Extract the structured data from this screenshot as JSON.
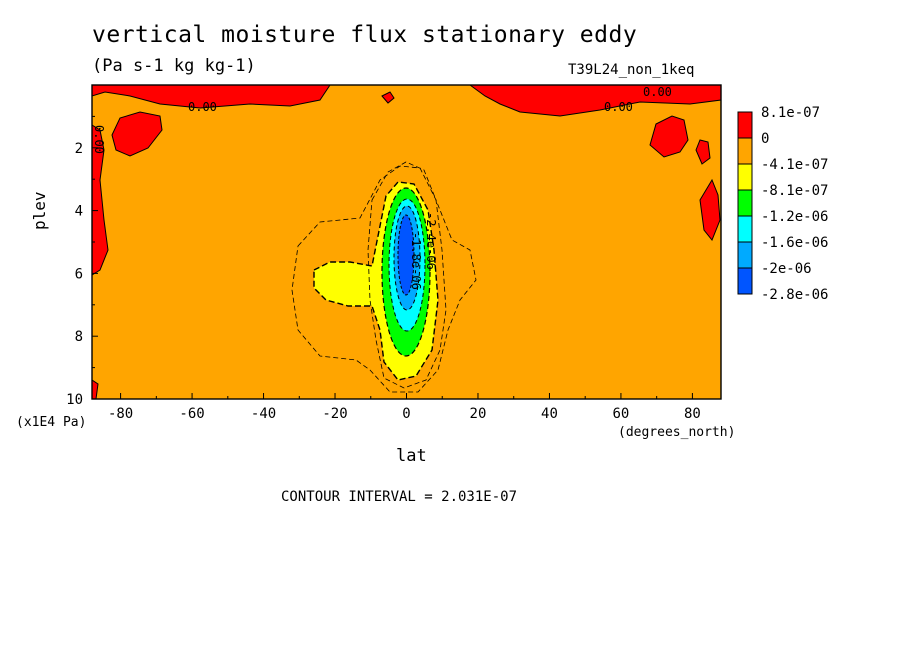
{
  "chart_data": {
    "type": "heatmap",
    "title": "vertical moisture flux stationary eddy",
    "units": "(Pa s-1 kg kg-1)",
    "run_label": "T39L24_non_1keq",
    "xlabel": "lat",
    "x_unit": "(degrees_north)",
    "ylabel": "plev",
    "y_unit": "(x1E4 Pa)",
    "xlim": [
      -88,
      88
    ],
    "ylim": [
      10,
      0
    ],
    "x_ticks": [
      -80,
      -60,
      -40,
      -20,
      0,
      20,
      40,
      60,
      80
    ],
    "y_ticks": [
      2,
      4,
      6,
      8,
      10
    ],
    "contour_interval": "CONTOUR INTERVAL = 2.031E-07",
    "colorbar": {
      "labels": [
        "8.1e-07",
        "0",
        "-4.1e-07",
        "-8.1e-07",
        "-1.2e-06",
        "-1.6e-06",
        "-2e-06",
        "-2.8e-06"
      ],
      "colors": [
        "#ff0000",
        "#ffa500",
        "#ffff00",
        "#00ff00",
        "#00ffff",
        "#00aaff",
        "#0055ff"
      ]
    },
    "contour_labels": [
      "0.00",
      "0.00",
      "0.00",
      "0.00",
      "-2.4e-06",
      "-1.8e-06"
    ],
    "background_color": "#ffa500",
    "feature": "negative minimum centered near lat 0, plev 6"
  }
}
